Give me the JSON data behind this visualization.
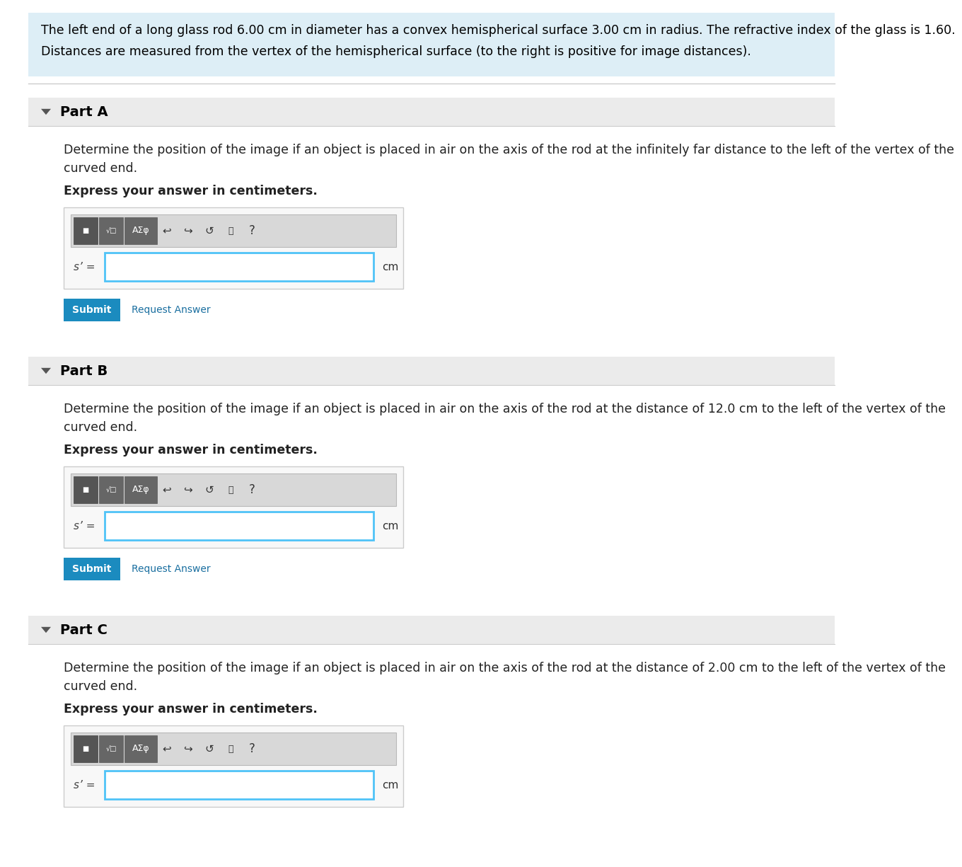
{
  "bg_color": "#ffffff",
  "header_bg": "#ddeef6",
  "header_text_line1": "The left end of a long glass rod 6.00 cm in diameter has a convex hemispherical surface 3.00 cm in radius. The refractive index of the glass is 1.60.",
  "header_text_line2": "Distances are measured from the vertex of the hemispherical surface (to the right is positive for image distances).",
  "header_text_color": "#000000",
  "header_font_size": 12.5,
  "section_bg": "#ebebeb",
  "section_text_color": "#000000",
  "section_font_size": 14,
  "parts": [
    {
      "label": "Part A",
      "description_line1": "Determine the position of the image if an object is placed in air on the axis of the rod at the infinitely far distance to the left of the vertex of the",
      "description_line2": "curved end.",
      "express": "Express your answer in centimeters.",
      "input_label": "s’ =",
      "unit": "cm",
      "show_submit": true
    },
    {
      "label": "Part B",
      "description_line1": "Determine the position of the image if an object is placed in air on the axis of the rod at the distance of 12.0 cm to the left of the vertex of the",
      "description_line2": "curved end.",
      "express": "Express your answer in centimeters.",
      "input_label": "s’ =",
      "unit": "cm",
      "show_submit": true
    },
    {
      "label": "Part C",
      "description_line1": "Determine the position of the image if an object is placed in air on the axis of the rod at the distance of 2.00 cm to the left of the vertex of the",
      "description_line2": "curved end.",
      "express": "Express your answer in centimeters.",
      "input_label": "s’ =",
      "unit": "cm",
      "show_submit": false
    }
  ],
  "submit_bg": "#1b8bbf",
  "submit_text": "Submit",
  "submit_text_color": "#ffffff",
  "request_answer_text": "Request Answer",
  "request_answer_color": "#1a6fa0",
  "input_border_color": "#4fc3f7",
  "input_bg": "#ffffff",
  "box_bg": "#f8f8f8",
  "box_border": "#cccccc",
  "toolbar_bg": "#d8d8d8",
  "toolbar_border": "#b8b8b8",
  "btn_dark_bg": "#555555",
  "btn_dark_bg2": "#666666",
  "divider_color": "#cccccc",
  "triangle_color": "#555555",
  "body_text_color": "#222222",
  "body_font_size": 12.5,
  "bold_font_size": 12.5
}
